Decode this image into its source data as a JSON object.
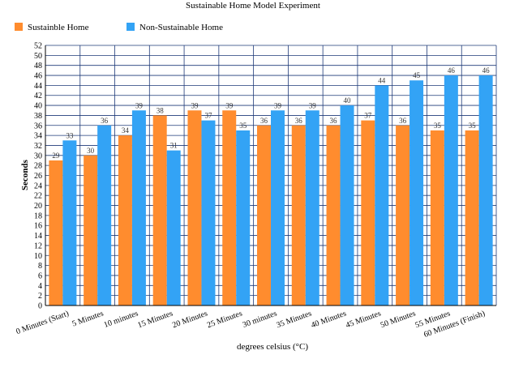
{
  "chart_data": {
    "type": "bar",
    "title": "Sustainable Home Model Experiment",
    "xlabel": "degrees celsius (°C)",
    "ylabel": "Seconds",
    "ylim": [
      0,
      52
    ],
    "ytick_step": 2,
    "grid": true,
    "legend_position": "top-left",
    "categories": [
      "0 Minutes (Start)",
      "5 Minutes",
      "10 minutes",
      "15 Minutes",
      "20 Minutes",
      "25 Minutes",
      "30 minutes",
      "35 Minutes",
      "40 Minutes",
      "45 Minutes",
      "50 Minutes",
      "55 Minutes",
      "60 Minutes (Finish)"
    ],
    "series": [
      {
        "name": "Sustainble Home",
        "color": "#ff8c2e",
        "values": [
          29,
          30,
          34,
          38,
          39,
          39,
          36,
          36,
          36,
          37,
          36,
          35,
          35
        ]
      },
      {
        "name": "Non-Sustainable Home",
        "color": "#33a3f5",
        "values": [
          33,
          36,
          39,
          31,
          37,
          35,
          39,
          39,
          40,
          44,
          45,
          46,
          46
        ]
      }
    ]
  }
}
